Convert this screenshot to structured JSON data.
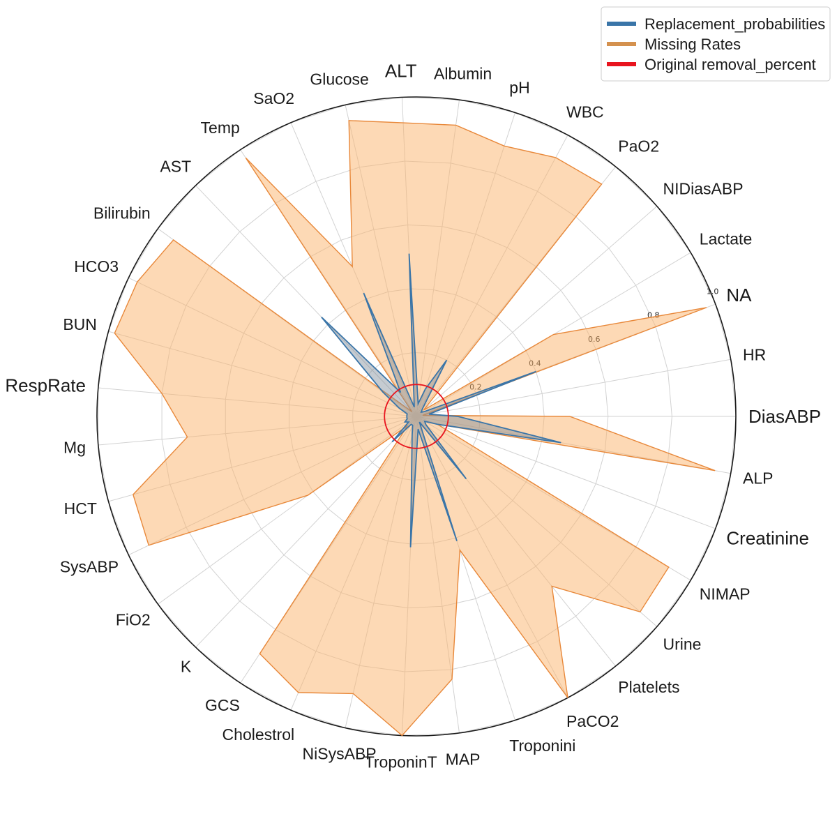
{
  "chart_data": {
    "type": "radar",
    "categories": [
      "DiasABP",
      "HR",
      "NA",
      "Lactate",
      "NIDiasABP",
      "PaO2",
      "WBC",
      "pH",
      "Albumin",
      "ALT",
      "Glucose",
      "SaO2",
      "Temp",
      "AST",
      "Bilirubin",
      "HCO3",
      "BUN",
      "RespRate",
      "Mg",
      "HCT",
      "SysABP",
      "FiO2",
      "K",
      "GCS",
      "Cholestrol",
      "NiSysABP",
      "TroponinT",
      "MAP",
      "Troponini",
      "PaCO2",
      "Platelets",
      "Urine",
      "NIMAP",
      "Creatinine",
      "ALP"
    ],
    "series": [
      {
        "name": "Replacement_probabilities",
        "color": "#3a75a8",
        "values": [
          0.13,
          0.04,
          0.4,
          0.03,
          0.02,
          0.03,
          0.2,
          0.09,
          0.04,
          0.51,
          0.03,
          0.42,
          0.09,
          0.43,
          0.13,
          0.06,
          0.03,
          0.03,
          0.03,
          0.03,
          0.04,
          0.03,
          0.11,
          0.03,
          0.03,
          0.06,
          0.41,
          0.04,
          0.41,
          0.02,
          0.25,
          0.04,
          0.03,
          0.07,
          0.46
        ]
      },
      {
        "name": "Missing Rates",
        "color": "#e8883a",
        "values": [
          0.48,
          0.02,
          0.97,
          0.5,
          0.03,
          0.93,
          0.92,
          0.89,
          0.92,
          0.92,
          0.95,
          0.51,
          0.97,
          0.02,
          0.94,
          0.97,
          0.98,
          0.8,
          0.72,
          0.92,
          0.93,
          0.42,
          0.04,
          0.89,
          0.94,
          0.89,
          1.0,
          0.83,
          0.44,
          1.0,
          0.68,
          0.93,
          0.92,
          0.07,
          0.95
        ]
      },
      {
        "name": "Original removal_percent",
        "color": "#e8141e",
        "value": 0.1
      }
    ],
    "rlim": [
      0,
      1.0
    ],
    "rticks": [
      "0.2",
      "0.4",
      "0.6",
      "0.8",
      "1.0"
    ],
    "legend_position": "top-right"
  }
}
